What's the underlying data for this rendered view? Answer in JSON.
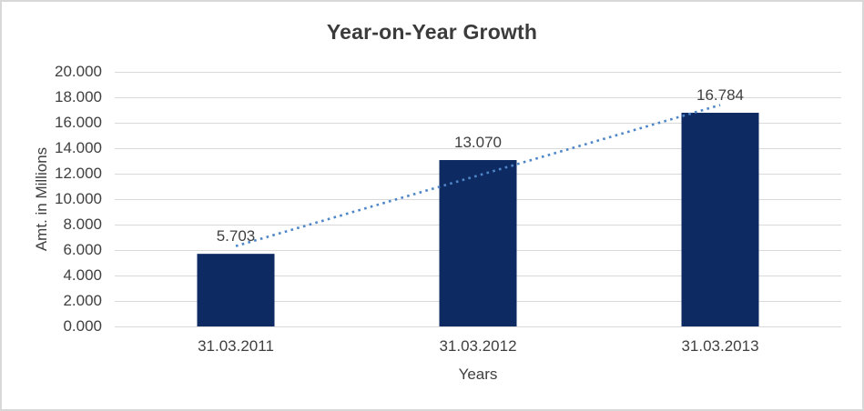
{
  "chart_data": {
    "type": "bar",
    "title": "Year-on-Year Growth",
    "xlabel": "Years",
    "ylabel": "Amt. in Millions",
    "categories": [
      "31.03.2011",
      "31.03.2012",
      "31.03.2013"
    ],
    "values": [
      5.703,
      13.07,
      16.784
    ],
    "data_labels": [
      "5.703",
      "13.070",
      "16.784"
    ],
    "ylim": [
      0,
      20
    ],
    "ytick_step": 2,
    "ytick_labels": [
      "0.000",
      "2.000",
      "4.000",
      "6.000",
      "8.000",
      "10.000",
      "12.000",
      "14.000",
      "16.000",
      "18.000",
      "20.000"
    ],
    "grid": "horizontal",
    "legend": "none",
    "trendline": {
      "type": "linear",
      "style": "dotted"
    },
    "colors": {
      "bar": "#0d2a63",
      "trendline": "#4e86c8",
      "gridline": "#d9d9d9",
      "text": "#404040",
      "frame_border": "#d8d8d8",
      "background": "#ffffff"
    }
  }
}
